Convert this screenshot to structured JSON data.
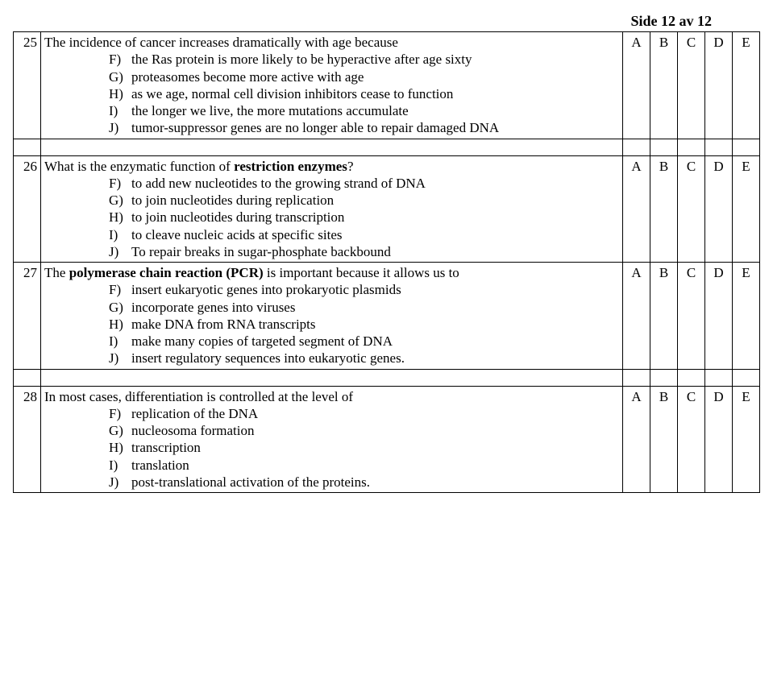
{
  "page_header": "Side 12 av 12",
  "answer_columns": [
    "A",
    "B",
    "C",
    "D",
    "E"
  ],
  "option_letters": [
    "F)",
    "G)",
    "H)",
    "I)",
    "J)"
  ],
  "questions": [
    {
      "num": "25",
      "stem_pre": "The incidence of cancer increases dramatically with age because",
      "stem_indent": "",
      "bold_term": "",
      "stem_post": "",
      "options": [
        "the Ras protein is more likely to be hyperactive after age sixty",
        "proteasomes become more active with age",
        "as we age, normal cell division inhibitors cease to function",
        "the longer we live, the more mutations accumulate",
        "tumor-suppressor genes are no longer able to repair damaged DNA"
      ]
    },
    {
      "num": "26",
      "stem_pre": "What is the enzymatic function of ",
      "bold_term": "restriction enzymes",
      "stem_post": "?",
      "stem_indent": "",
      "options": [
        "to add new nucleotides to the growing strand of DNA",
        "to join nucleotides during replication",
        "to join nucleotides during transcription",
        "to cleave nucleic acids at specific sites",
        "To repair breaks in sugar-phosphate backbound"
      ]
    },
    {
      "num": "27",
      "stem_pre": "The ",
      "bold_term": "polymerase chain reaction (PCR)",
      "stem_post": " is important because it allows us to",
      "stem_indent": "",
      "options": [
        "insert eukaryotic genes into prokaryotic plasmids",
        "incorporate genes into viruses",
        "make DNA from RNA transcripts",
        "make many copies of targeted segment of DNA",
        "insert regulatory sequences into eukaryotic genes."
      ]
    },
    {
      "num": "28",
      "stem_pre": "In most cases, differentiation is controlled at the level of",
      "bold_term": "",
      "stem_post": "",
      "stem_indent": "",
      "options": [
        "replication of the DNA",
        "nucleosoma formation",
        "transcription",
        "translation",
        "post-translational activation of the proteins."
      ]
    }
  ]
}
